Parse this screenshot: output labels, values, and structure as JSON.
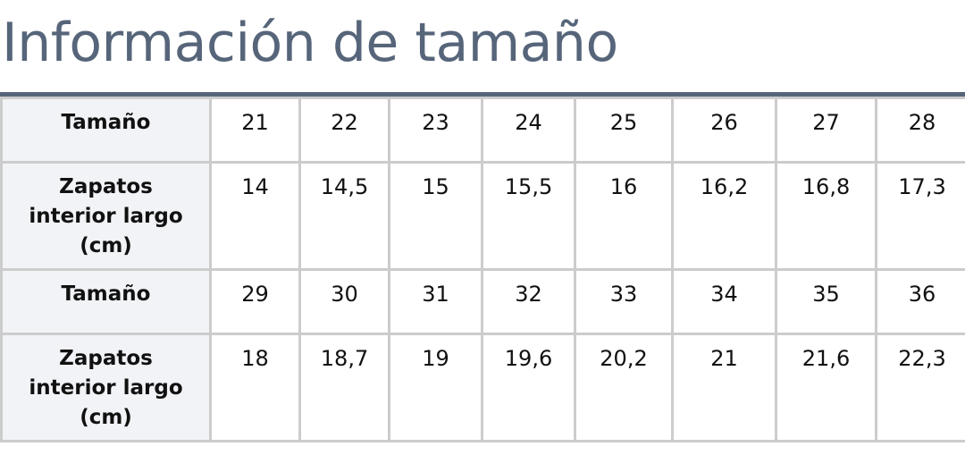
{
  "title": "Información de tamaño",
  "rows": [
    {
      "label": "Tamaño",
      "values": [
        "21",
        "22",
        "23",
        "24",
        "25",
        "26",
        "27",
        "28"
      ]
    },
    {
      "label": "Zapatos interior largo (cm)",
      "values": [
        "14",
        "14,5",
        "15",
        "15,5",
        "16",
        "16,2",
        "16,8",
        "17,3"
      ]
    },
    {
      "label": "Tamaño",
      "values": [
        "29",
        "30",
        "31",
        "32",
        "33",
        "34",
        "35",
        "36"
      ]
    },
    {
      "label": "Zapatos interior largo (cm)",
      "values": [
        "18",
        "18,7",
        "19",
        "19,6",
        "20,2",
        "21",
        "21,6",
        "22,3"
      ]
    }
  ],
  "colors": {
    "accent": "#56657a",
    "header_bg": "#f2f3f7",
    "border": "#cccccc"
  }
}
